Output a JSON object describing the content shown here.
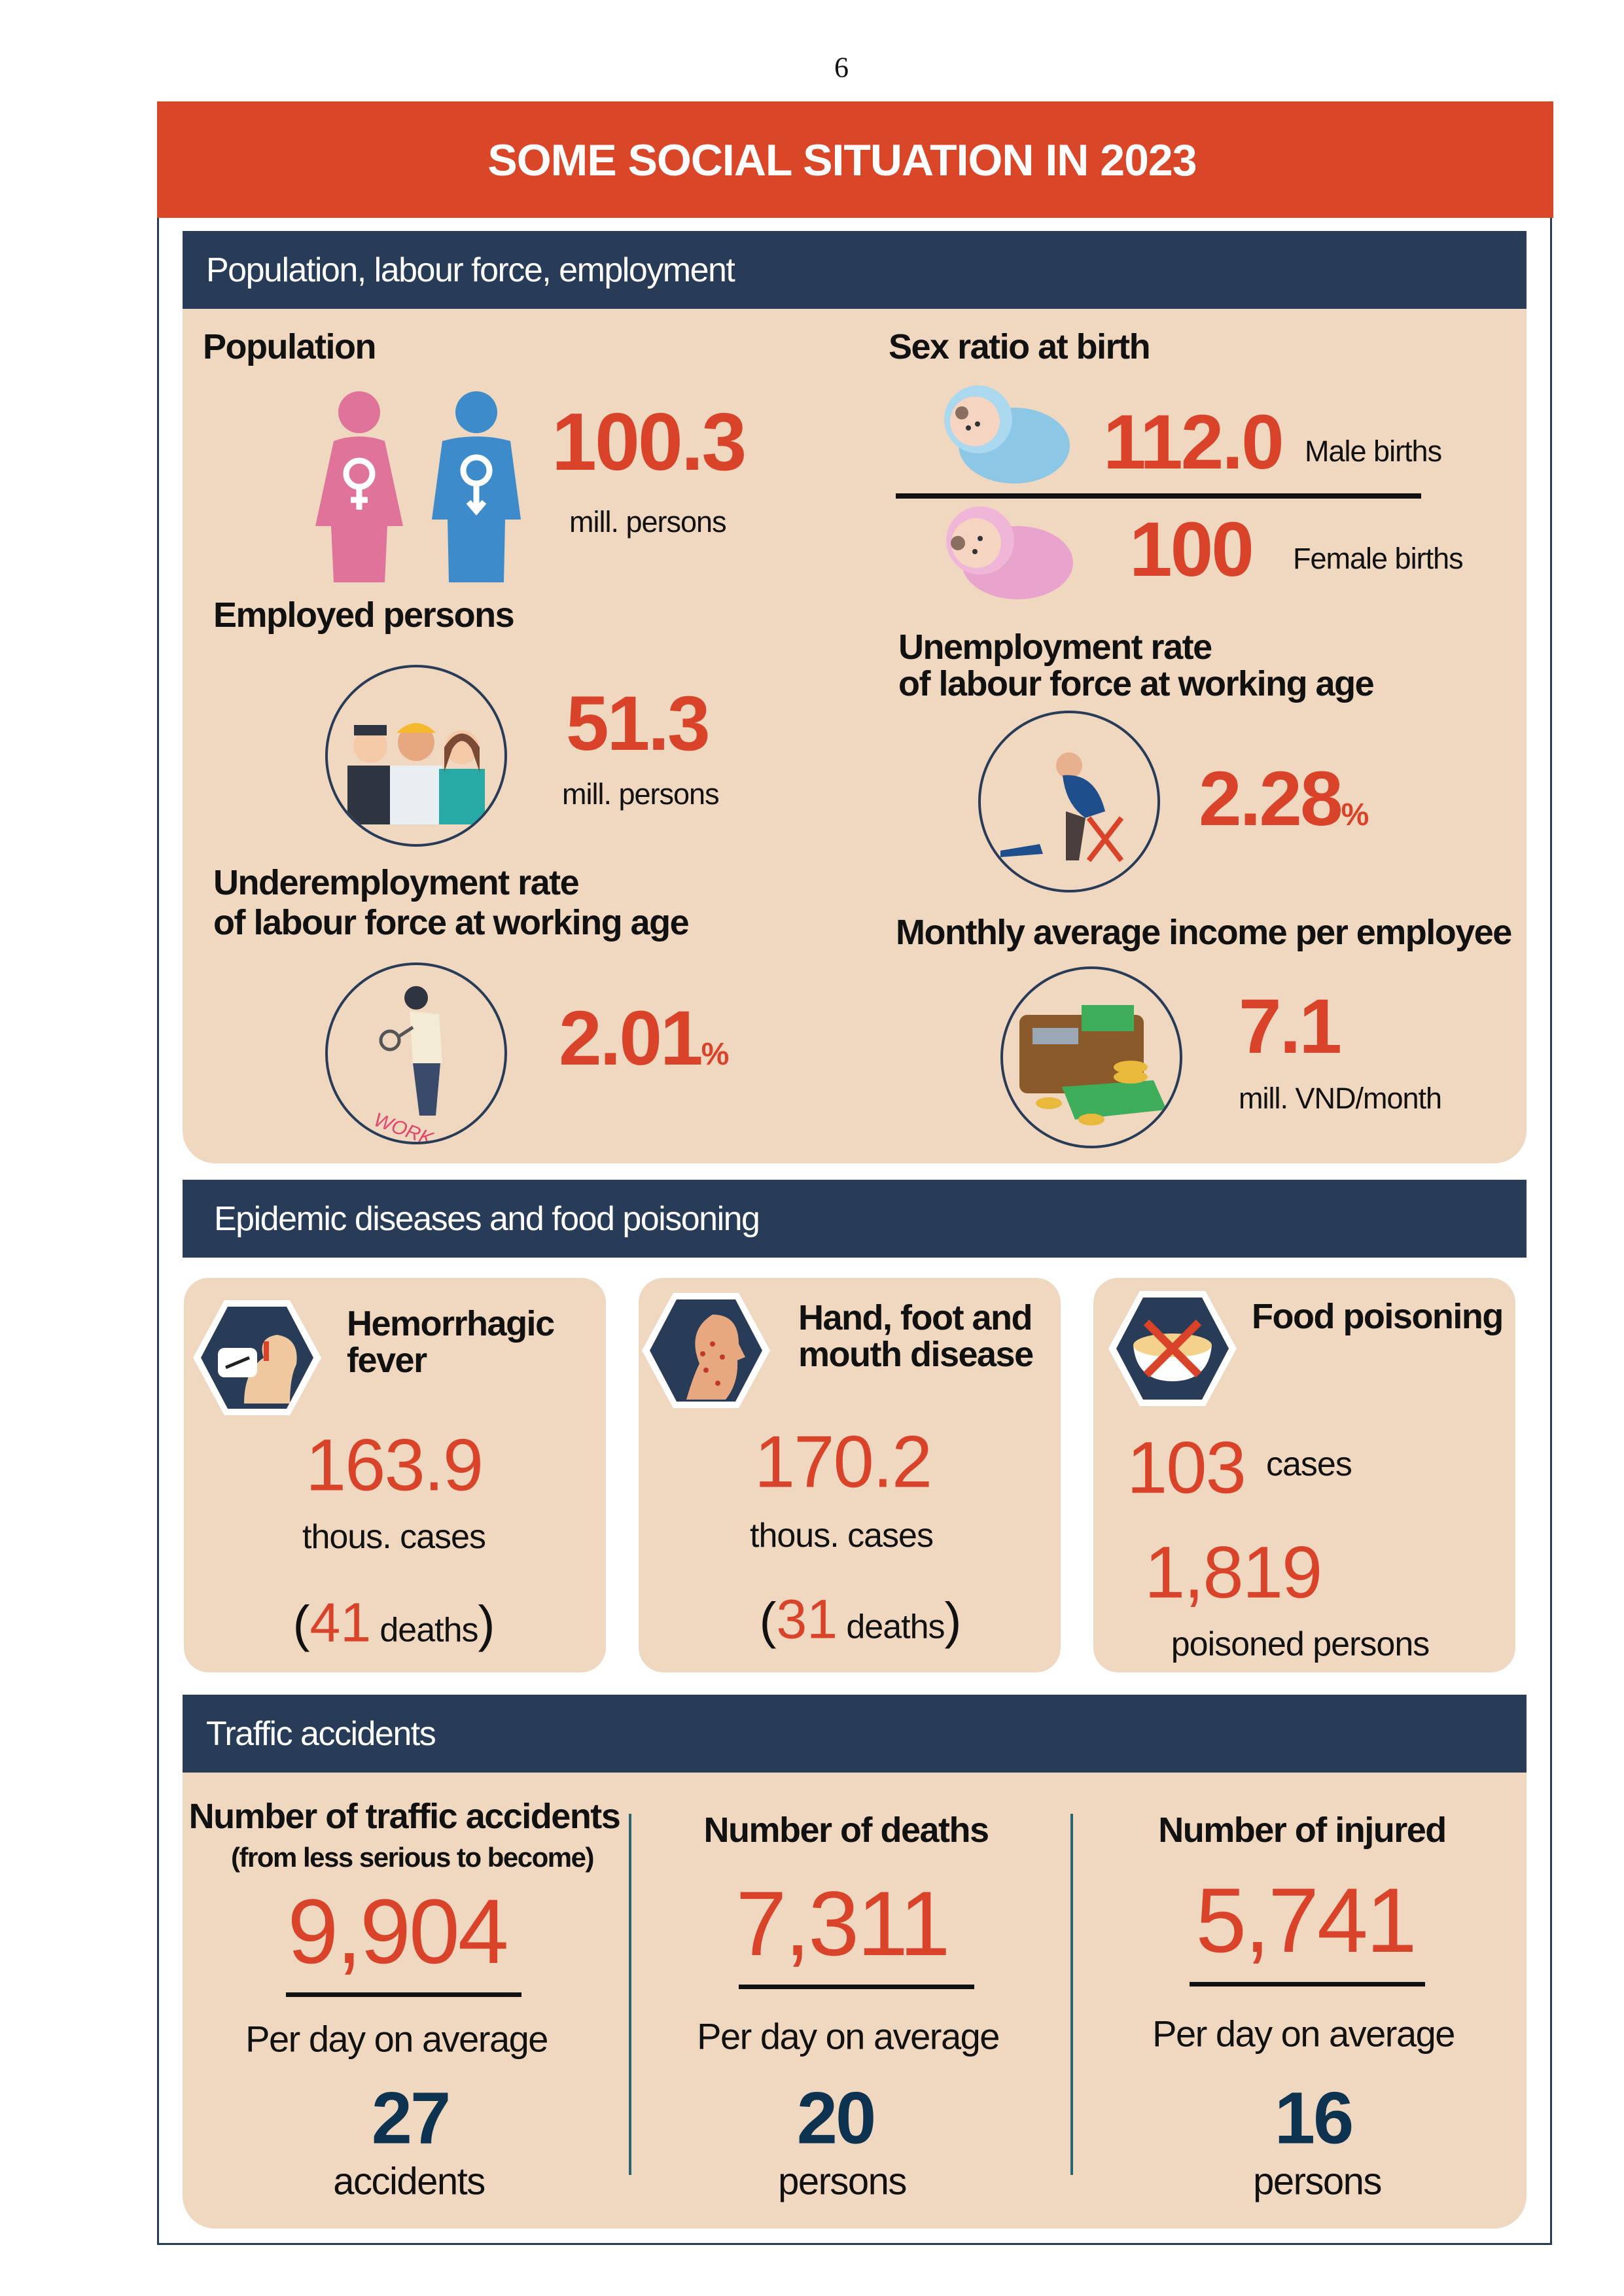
{
  "page_number": "6",
  "title": "SOME SOCIAL SITUATION IN 2023",
  "colors": {
    "header_red": "#DA4628",
    "navy": "#283C58",
    "panel": "#F0D7C0",
    "value_red": "#D8432A",
    "value_navy": "#0E3350"
  },
  "population_section": {
    "header": "Population, labour force, employment",
    "population": {
      "label": "Population",
      "value": "100.3",
      "unit": "mill. persons",
      "icon": "female-male-figures-icon"
    },
    "sex_ratio": {
      "label": "Sex ratio at birth",
      "male_value": "112.0",
      "male_label": "Male births",
      "female_value": "100",
      "female_label": "Female births"
    },
    "employed": {
      "label": "Employed persons",
      "value": "51.3",
      "unit": "mill. persons",
      "icon": "workers-icon"
    },
    "unemployment": {
      "label_line1": "Unemployment rate",
      "label_line2": "of labour force at working age",
      "value": "2.28",
      "unit": "%",
      "icon": "sad-man-icon"
    },
    "underemployment": {
      "label_line1": "Underemployment rate",
      "label_line2": "of labour force at working age",
      "value": "2.01",
      "unit": "%",
      "icon": "man-magnifier-icon",
      "icon_text": "WORK"
    },
    "income": {
      "label": "Monthly average income per employee",
      "value": "7.1",
      "unit": "mill. VND/month",
      "icon": "wallet-money-icon"
    }
  },
  "epidemic_section": {
    "header": "Epidemic diseases and food poisoning",
    "cards": [
      {
        "title_line1": "Hemorrhagic",
        "title_line2": "fever",
        "value": "163.9",
        "unit": "thous. cases",
        "deaths_open": "(",
        "deaths_value": "41",
        "deaths_label": " deaths",
        "deaths_close": ")"
      },
      {
        "title_line1": "Hand, foot and",
        "title_line2": "mouth disease",
        "value": "170.2",
        "unit": "thous. cases",
        "deaths_open": "(",
        "deaths_value": "31",
        "deaths_label": " deaths",
        "deaths_close": ")"
      },
      {
        "title_line1": "Food poisoning",
        "cases_value": "103",
        "cases_label": "cases",
        "poisoned_value": "1,819",
        "poisoned_label": "poisoned persons"
      }
    ]
  },
  "traffic_section": {
    "header": "Traffic accidents",
    "columns": [
      {
        "title": "Number of traffic accidents",
        "subtitle": "(from less serious to become)",
        "value": "9,904",
        "per_day_label": "Per day on average",
        "per_day_value": "27",
        "per_day_unit": "accidents"
      },
      {
        "title": "Number of deaths",
        "value": "7,311",
        "per_day_label": "Per day on average",
        "per_day_value": "20",
        "per_day_unit": "persons"
      },
      {
        "title": "Number of injured",
        "value": "5,741",
        "per_day_label": "Per day on average",
        "per_day_value": "16",
        "per_day_unit": "persons"
      }
    ]
  }
}
